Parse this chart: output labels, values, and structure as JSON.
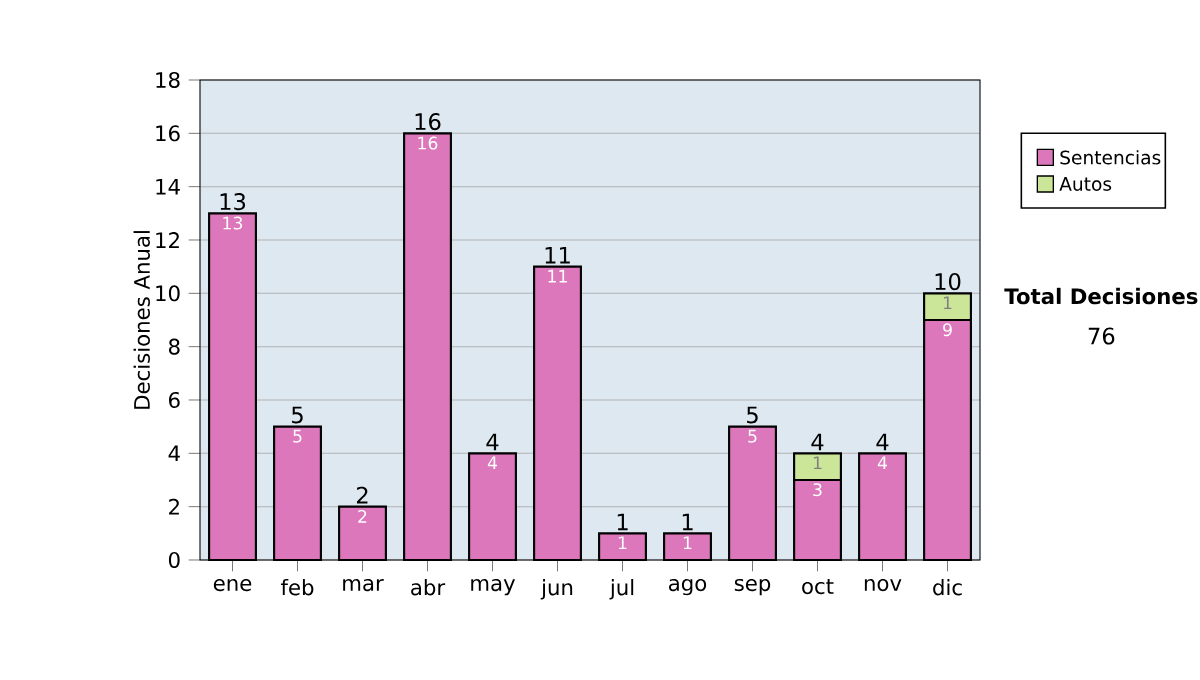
{
  "chart_data": {
    "type": "bar",
    "stacked": true,
    "ylabel": "Decisiones Anual",
    "categories": [
      "ene",
      "feb",
      "mar",
      "abr",
      "may",
      "jun",
      "jul",
      "ago",
      "sep",
      "oct",
      "nov",
      "dic"
    ],
    "series": [
      {
        "name": "Sentencias",
        "color": "#dd77bb",
        "values": [
          13,
          5,
          2,
          16,
          4,
          11,
          1,
          1,
          5,
          3,
          4,
          9
        ]
      },
      {
        "name": "Autos",
        "color": "#cce699",
        "values": [
          null,
          null,
          null,
          null,
          null,
          null,
          null,
          null,
          null,
          1,
          null,
          1
        ]
      }
    ],
    "totals": [
      "13",
      "5",
      "2",
      "16",
      "4",
      "11",
      "1",
      "1",
      "5",
      "4",
      "4",
      "10"
    ],
    "data_labels": true,
    "ylim": [
      0,
      18
    ],
    "yticks": [
      0,
      2,
      4,
      6,
      8,
      10,
      12,
      14,
      16,
      18
    ],
    "grid": "y",
    "legend": "right",
    "annotations": [
      "Total Decisiones",
      "76"
    ]
  }
}
